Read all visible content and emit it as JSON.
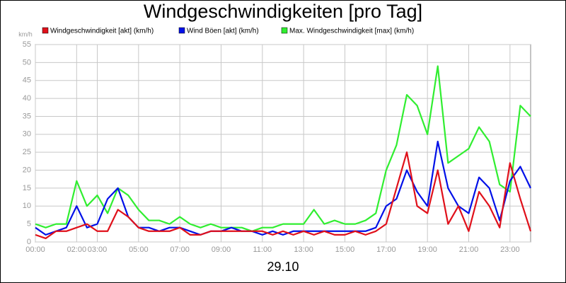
{
  "chart_data": {
    "type": "line",
    "title": "Windgeschwindigkeiten [pro Tag]",
    "ylabel": "km/h",
    "xlabel": "29.10",
    "x": [
      0,
      0.5,
      1,
      1.5,
      2,
      2.5,
      3,
      3.5,
      4,
      4.5,
      5,
      5.5,
      6,
      6.5,
      7,
      7.5,
      8,
      8.5,
      9,
      9.5,
      10,
      10.5,
      11,
      11.5,
      12,
      12.5,
      13,
      13.5,
      14,
      14.5,
      15,
      15.5,
      16,
      16.5,
      17,
      17.5,
      18,
      18.5,
      19,
      19.5,
      20,
      20.5,
      21,
      21.5,
      22,
      22.5,
      23,
      23.5,
      24
    ],
    "series": [
      {
        "name": "Windgeschwindigkeit [akt] (km/h)",
        "color": "#e0101a",
        "values": [
          2,
          1,
          3,
          3,
          4,
          5,
          3,
          3,
          9,
          7,
          4,
          3,
          3,
          3,
          4,
          2,
          2,
          3,
          3,
          3,
          3,
          3,
          3,
          2,
          3,
          2,
          3,
          2,
          3,
          2,
          2,
          3,
          2,
          3,
          5,
          15,
          25,
          10,
          8,
          20,
          5,
          10,
          3,
          14,
          10,
          4,
          22,
          12,
          3
        ]
      },
      {
        "name": "Wind Böen [akt] (km/h)",
        "color": "#0010e8",
        "values": [
          4,
          2,
          3,
          4,
          10,
          4,
          5,
          12,
          15,
          7,
          4,
          4,
          3,
          4,
          4,
          3,
          2,
          3,
          3,
          4,
          3,
          3,
          2,
          3,
          2,
          3,
          3,
          3,
          3,
          3,
          3,
          3,
          3,
          4,
          10,
          12,
          20,
          14,
          10,
          28,
          15,
          10,
          8,
          18,
          15,
          6,
          17,
          21,
          15
        ]
      },
      {
        "name": "Max. Windgeschwindigkeit [max] (km/h)",
        "color": "#30ee30",
        "values": [
          5,
          4,
          5,
          5,
          17,
          10,
          13,
          8,
          15,
          13,
          9,
          6,
          6,
          5,
          7,
          5,
          4,
          5,
          4,
          4,
          4,
          3,
          4,
          4,
          5,
          5,
          5,
          9,
          5,
          6,
          5,
          5,
          6,
          8,
          20,
          27,
          41,
          38,
          30,
          49,
          22,
          24,
          26,
          32,
          28,
          16,
          14,
          38,
          35
        ]
      }
    ],
    "xlim": [
      0,
      24
    ],
    "xticks": [
      {
        "value": 0,
        "label": "00:00"
      },
      {
        "value": 2,
        "label": "02:00"
      },
      {
        "value": 3,
        "label": "03:00"
      },
      {
        "value": 5,
        "label": "05:00"
      },
      {
        "value": 7,
        "label": "07:00"
      },
      {
        "value": 9,
        "label": "09:00"
      },
      {
        "value": 11,
        "label": "11:00"
      },
      {
        "value": 13,
        "label": "13:00"
      },
      {
        "value": 15,
        "label": "15:00"
      },
      {
        "value": 17,
        "label": "17:00"
      },
      {
        "value": 19,
        "label": "19:00"
      },
      {
        "value": 21,
        "label": "21:00"
      },
      {
        "value": 23,
        "label": "23:00"
      }
    ],
    "ylim": [
      0,
      55
    ],
    "yticks": [
      0,
      5,
      10,
      15,
      20,
      25,
      30,
      35,
      40,
      45,
      50,
      55
    ],
    "grid": true
  }
}
